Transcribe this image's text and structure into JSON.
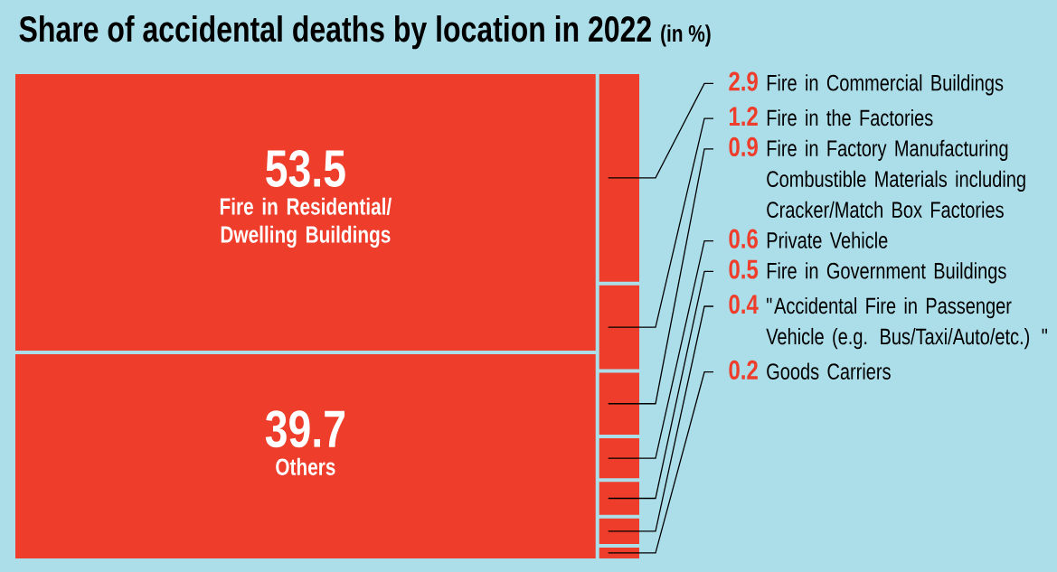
{
  "chart_data": {
    "type": "other",
    "title": "Share of accidental deaths by location in 2022",
    "subtitle": "(in %)",
    "categories": [
      "Fire in Residential/ Dwelling Buildings",
      "Others",
      "Fire in Commercial Buildings",
      "Fire in the Factories",
      "Fire in Factory Manufacturing Combustible Materials including Cracker/Match Box Factories",
      "Private Vehicle",
      "Fire in Government Buildings",
      "\"Accidental Fire in Passenger Vehicle (e.g. Bus/Taxi/Auto/etc.) \"",
      "Goods Carriers"
    ],
    "values": [
      53.5,
      39.7,
      2.9,
      1.2,
      0.9,
      0.6,
      0.5,
      0.4,
      0.2
    ],
    "colors": [
      "#ee3d2a",
      "#ee3d2a",
      "#ee3d2a",
      "#ee3d2a",
      "#ee3d2a",
      "#ee3d2a",
      "#ee3d2a",
      "#ee3d2a",
      "#ee3d2a"
    ],
    "data_labels": true
  }
}
